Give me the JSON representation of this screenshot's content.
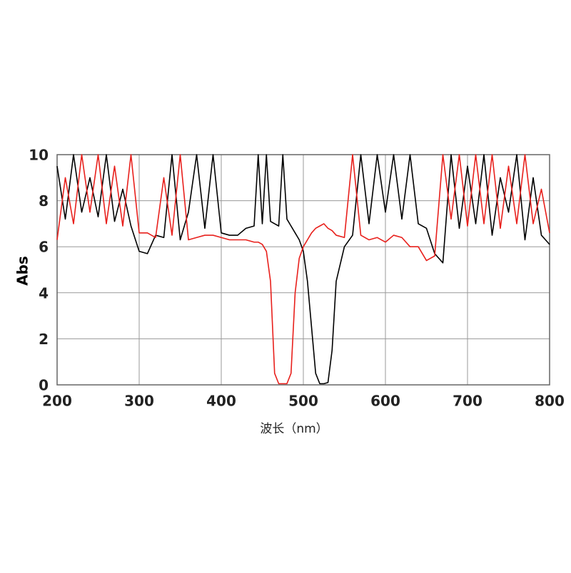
{
  "chart_data": {
    "type": "line",
    "x_label": "波长（nm）",
    "y_label": "Abs",
    "x": [
      200,
      210,
      220,
      230,
      240,
      250,
      260,
      270,
      280,
      290,
      300,
      310,
      320,
      330,
      340,
      350,
      360,
      370,
      380,
      390,
      400,
      410,
      420,
      430,
      440,
      445,
      450,
      455,
      460,
      465,
      470,
      475,
      480,
      485,
      490,
      495,
      500,
      505,
      510,
      515,
      520,
      525,
      530,
      535,
      540,
      550,
      560,
      570,
      580,
      590,
      600,
      610,
      620,
      630,
      640,
      650,
      660,
      670,
      680,
      690,
      700,
      710,
      720,
      730,
      740,
      750,
      760,
      770,
      780,
      790,
      800
    ],
    "series": [
      {
        "color": "#000000",
        "values": [
          9.5,
          7.2,
          10,
          7.5,
          9,
          7.3,
          10,
          7.1,
          8.5,
          6.9,
          5.8,
          5.7,
          6.5,
          6.4,
          10,
          6.3,
          7.5,
          10,
          6.8,
          10,
          6.6,
          6.5,
          6.5,
          6.8,
          6.9,
          10,
          7.0,
          10,
          7.1,
          7.0,
          6.9,
          10,
          7.2,
          6.9,
          6.6,
          6.3,
          5.8,
          4.5,
          2.5,
          0.5,
          0.05,
          0.05,
          0.1,
          1.5,
          4.5,
          6.0,
          6.5,
          10,
          7,
          10,
          7.5,
          10,
          7.2,
          10,
          7.0,
          6.8,
          5.7,
          5.3,
          10,
          6.8,
          9.5,
          7,
          10,
          6.5,
          9,
          7.5,
          10,
          6.3,
          9,
          6.5,
          6.1
        ]
      },
      {
        "color": "#e8201c",
        "values": [
          6.3,
          9,
          7,
          10,
          7.5,
          10,
          7,
          9.5,
          6.9,
          10,
          6.6,
          6.6,
          6.4,
          9,
          6.5,
          10,
          6.3,
          6.4,
          6.5,
          6.5,
          6.4,
          6.3,
          6.3,
          6.3,
          6.2,
          6.2,
          6.1,
          5.8,
          4.5,
          0.5,
          0.05,
          0.05,
          0.05,
          0.5,
          4.0,
          5.5,
          6.0,
          6.3,
          6.6,
          6.8,
          6.9,
          7.0,
          6.8,
          6.7,
          6.5,
          6.4,
          10,
          6.5,
          6.3,
          6.4,
          6.2,
          6.5,
          6.4,
          6.0,
          6.0,
          5.4,
          5.6,
          10,
          7.2,
          10,
          6.9,
          10,
          7,
          10,
          6.8,
          9.5,
          7,
          10,
          7,
          8.5,
          6.6
        ]
      }
    ],
    "xlim": [
      200,
      800
    ],
    "ylim": [
      0,
      10
    ],
    "xticks": [
      200,
      300,
      400,
      500,
      600,
      700,
      800
    ],
    "yticks": [
      0,
      2,
      4,
      6,
      8,
      10
    ],
    "grid": true
  }
}
